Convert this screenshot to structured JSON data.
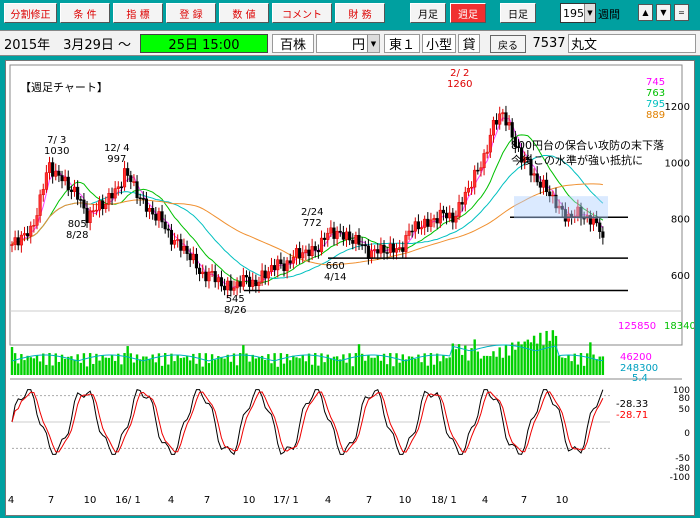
{
  "toolbar": {
    "buttons": [
      {
        "label": "分割修正",
        "style": "red"
      },
      {
        "label": "条 件",
        "style": "red"
      },
      {
        "label": "指 標",
        "style": "red"
      },
      {
        "label": "登 録",
        "style": "red"
      },
      {
        "label": "数 値",
        "style": "red"
      },
      {
        "label": "コメント",
        "style": "red"
      },
      {
        "label": "財 務",
        "style": "red"
      },
      {
        "label": "月足",
        "style": "normal"
      },
      {
        "label": "週足",
        "style": "active"
      },
      {
        "label": "日足",
        "style": "normal"
      }
    ],
    "period_value": "195",
    "period_unit": "週間",
    "arrows": [
      "▲",
      "▼",
      "="
    ]
  },
  "infobar": {
    "date": "2015年　3月29日 ～",
    "time": "25日 15:00",
    "unit": "百株",
    "currency": "円",
    "market": "東１",
    "size": "小型",
    "credit": "貸",
    "back_label": "戻る",
    "code": "7537",
    "name": "丸文"
  },
  "chart": {
    "title": "【週足チャート】",
    "ma_legend": [
      {
        "label": "745",
        "color": "#ff00ff"
      },
      {
        "label": "763",
        "color": "#00c000"
      },
      {
        "label": "795",
        "color": "#00c0c0"
      },
      {
        "label": "889",
        "color": "#e08000"
      }
    ],
    "price_axis": [
      "1200",
      "1000",
      "800",
      "600"
    ],
    "annotations": [
      {
        "top": "7/ 3",
        "bottom": "1030"
      },
      {
        "top": "12/ 4",
        "bottom": "997"
      },
      {
        "top": "805",
        "bottom": "8/28"
      },
      {
        "top": "2/24",
        "bottom": "772"
      },
      {
        "top": "660",
        "bottom": "4/14"
      },
      {
        "top": "545",
        "bottom": "8/26"
      },
      {
        "top": "2/ 2",
        "bottom": "1260"
      }
    ],
    "comment_lines": [
      "800円台の保合い攻防の末下落",
      "今後この水準が強い抵抗に"
    ],
    "volume_labels": [
      {
        "label": "125850",
        "color": "#ff00ff"
      },
      {
        "label": "18340",
        "color": "#00c000"
      },
      {
        "label": "46200",
        "color": "#ff00ff"
      },
      {
        "label": "248300",
        "color": "#00a0c0"
      },
      {
        "label": "5.4",
        "color": "#00a0c0"
      }
    ],
    "osc_axis": [
      "100",
      "80",
      "50",
      "0",
      "-50",
      "-80",
      "-100"
    ],
    "osc_values": [
      {
        "label": "-28.33",
        "color": "#000000"
      },
      {
        "label": "-28.71",
        "color": "#ff0000"
      }
    ],
    "x_labels": [
      "4",
      "7",
      "10",
      "16/ 1",
      "4",
      "7",
      "10",
      "17/ 1",
      "4",
      "7",
      "10",
      "18/ 1",
      "4",
      "7",
      "10"
    ]
  }
}
